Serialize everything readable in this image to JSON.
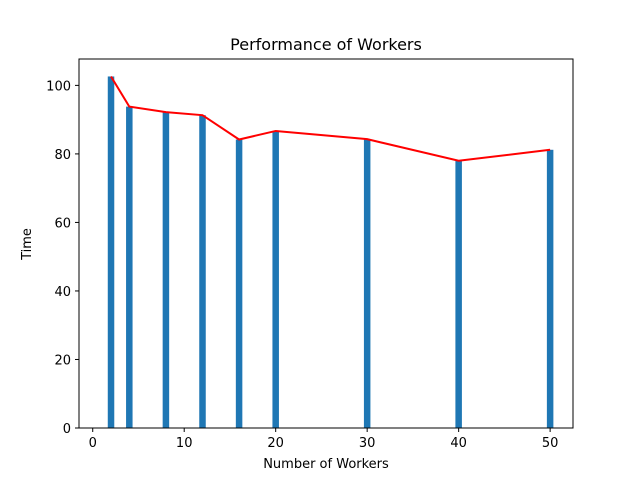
{
  "chart_data": {
    "type": "bar",
    "title": "Performance of Workers",
    "xlabel": "Number of Workers",
    "ylabel": "Time",
    "x": [
      2,
      4,
      8,
      12,
      16,
      20,
      30,
      40,
      50
    ],
    "values": [
      102.6,
      93.8,
      92.2,
      91.3,
      84.2,
      86.7,
      84.3,
      78.0,
      81.2
    ],
    "overlay_line": true,
    "xlim": [
      -1.5,
      52.5
    ],
    "ylim": [
      0,
      107.7
    ],
    "xticks": [
      "0",
      "10",
      "20",
      "30",
      "40",
      "50"
    ],
    "xtick_values": [
      0,
      10,
      20,
      30,
      40,
      50
    ],
    "yticks": [
      "0",
      "20",
      "40",
      "60",
      "80",
      "100"
    ],
    "ytick_values": [
      0,
      20,
      40,
      60,
      80,
      100
    ],
    "grid": false,
    "colors": {
      "bar": "#1f77b4",
      "line": "#ff0000"
    }
  }
}
